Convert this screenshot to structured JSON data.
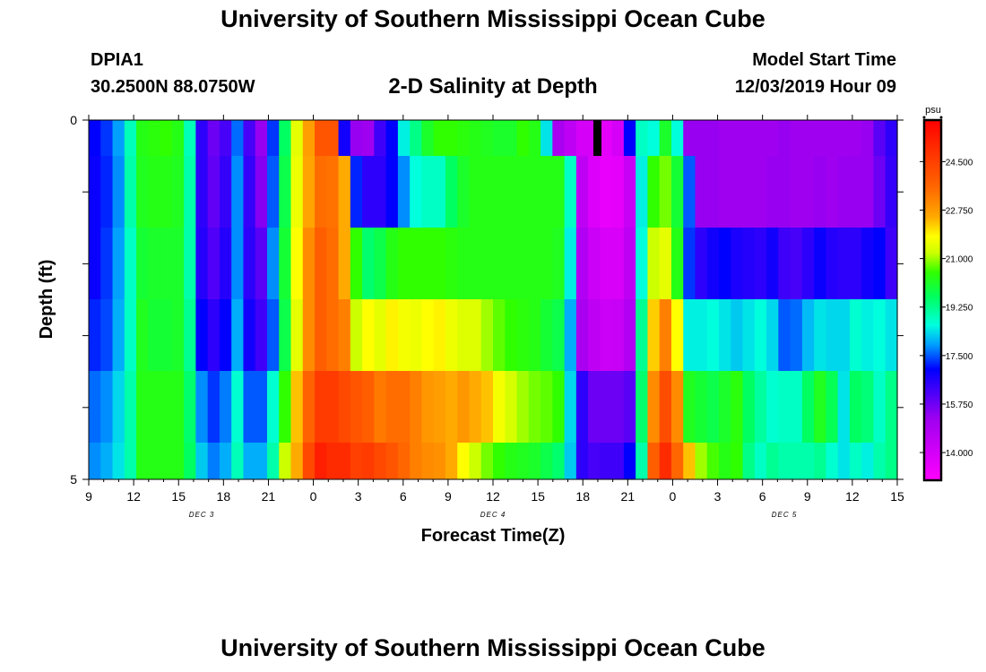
{
  "header": {
    "title": "University of Southern Mississippi Ocean Cube",
    "station_id": "DPIA1",
    "station_coords": "30.2500N 88.0750W",
    "model_start_label": "Model Start Time",
    "model_start_value": "12/03/2019 Hour 09"
  },
  "footer": {
    "title": "University of Southern Mississippi Ocean Cube"
  },
  "chart_data": {
    "type": "heatmap",
    "title": "2-D Salinity at Depth",
    "xlabel": "Forecast Time(Z)",
    "ylabel": "Depth (ft)",
    "x_tick_labels": [
      "9",
      "12",
      "15",
      "18",
      "21",
      "0",
      "3",
      "6",
      "9",
      "12",
      "15",
      "18",
      "21",
      "0",
      "3",
      "6",
      "9",
      "12",
      "15"
    ],
    "date_labels": [
      "DEC 3",
      "DEC 4",
      "DEC 5"
    ],
    "y_tick_labels": [
      "0",
      "5"
    ],
    "ylim": [
      0,
      5
    ],
    "x_start_hour": 9,
    "x_step_hours": 3,
    "colorbar": {
      "unit": "psu",
      "ticks": [
        "24.500",
        "22.750",
        "21.000",
        "19.250",
        "17.500",
        "15.750",
        "14.000"
      ],
      "min": 13.0,
      "max": 26.0,
      "stops": [
        {
          "v": 13.0,
          "c": "#ff00ff"
        },
        {
          "v": 15.2,
          "c": "#a000f0"
        },
        {
          "v": 17.0,
          "c": "#0000ff"
        },
        {
          "v": 17.9,
          "c": "#00a0ff"
        },
        {
          "v": 18.6,
          "c": "#00ffdd"
        },
        {
          "v": 19.6,
          "c": "#00ff60"
        },
        {
          "v": 20.5,
          "c": "#30ff00"
        },
        {
          "v": 21.2,
          "c": "#ccff00"
        },
        {
          "v": 21.8,
          "c": "#ffff00"
        },
        {
          "v": 22.5,
          "c": "#ffaa00"
        },
        {
          "v": 23.6,
          "c": "#ff6600"
        },
        {
          "v": 26.0,
          "c": "#ff0000"
        }
      ]
    },
    "depth_layers_ft": [
      0,
      0.5,
      1.5,
      2.5,
      3.5,
      4.5
    ],
    "salinity_psu": [
      [
        17.0,
        17.3,
        17.9,
        18.9,
        20.3,
        20.4,
        20.5,
        20.3,
        18.9,
        16.5,
        15.8,
        16.2,
        17.6,
        16.2,
        15.3,
        17.3,
        19.6,
        21.5,
        22.7,
        24.0,
        24.0,
        16.8,
        15.3,
        15.2,
        16.3,
        17.0,
        18.5,
        19.3,
        20.1,
        20.5,
        20.5,
        20.4,
        20.3,
        20.2,
        20.1,
        20.1,
        20.5,
        20.3,
        18.4,
        15.0,
        14.5,
        14.0,
        14.0,
        13.6,
        14.0,
        17.0,
        18.8,
        18.6,
        20.1,
        18.6,
        15.3,
        15.3,
        15.3,
        15.2,
        15.2,
        15.2,
        15.2,
        15.2,
        15.3,
        15.2,
        15.2,
        15.2,
        15.2,
        15.2,
        15.2,
        15.3,
        16.0,
        16.5
      ],
      [
        16.9,
        17.2,
        17.8,
        19.0,
        20.2,
        20.3,
        20.3,
        20.2,
        19.0,
        16.5,
        15.9,
        16.4,
        17.8,
        16.4,
        15.5,
        17.5,
        19.8,
        21.6,
        22.6,
        23.5,
        23.4,
        22.5,
        17.2,
        16.5,
        16.5,
        17.0,
        17.8,
        18.6,
        18.8,
        18.8,
        19.6,
        20.1,
        20.3,
        20.3,
        20.3,
        20.3,
        20.3,
        20.3,
        20.3,
        20.3,
        18.8,
        14.5,
        13.8,
        13.5,
        13.6,
        14.3,
        18.5,
        20.5,
        20.8,
        20.0,
        17.5,
        15.3,
        15.3,
        15.2,
        15.2,
        15.2,
        15.2,
        15.3,
        15.3,
        15.2,
        15.2,
        15.3,
        15.2,
        15.3,
        15.3,
        15.3,
        15.8,
        16.4
      ],
      [
        16.9,
        17.3,
        17.9,
        18.8,
        20.0,
        20.1,
        20.1,
        20.1,
        19.0,
        16.6,
        16.1,
        16.6,
        17.8,
        16.5,
        16.0,
        17.8,
        20.0,
        21.8,
        23.0,
        23.8,
        23.5,
        22.5,
        20.5,
        19.5,
        19.8,
        20.3,
        20.5,
        20.5,
        20.5,
        20.5,
        20.4,
        20.3,
        20.3,
        20.3,
        20.3,
        20.3,
        20.3,
        20.3,
        20.3,
        20.2,
        18.5,
        14.8,
        14.2,
        13.9,
        13.9,
        14.5,
        18.6,
        21.2,
        21.5,
        20.3,
        17.3,
        16.5,
        16.8,
        17.0,
        16.7,
        16.6,
        16.5,
        16.8,
        16.3,
        16.2,
        16.5,
        16.9,
        16.6,
        16.5,
        16.5,
        16.8,
        17.0,
        16.3
      ],
      [
        17.2,
        17.4,
        18.0,
        18.8,
        20.2,
        20.0,
        20.0,
        20.1,
        19.2,
        17.0,
        16.5,
        17.0,
        18.0,
        16.8,
        16.3,
        17.5,
        19.8,
        21.5,
        23.0,
        23.8,
        23.5,
        23.2,
        21.2,
        21.8,
        21.5,
        21.9,
        21.7,
        21.6,
        21.8,
        21.9,
        21.6,
        21.4,
        21.4,
        21.0,
        20.7,
        20.5,
        20.4,
        20.3,
        20.0,
        19.8,
        18.0,
        15.0,
        14.5,
        14.2,
        14.3,
        14.8,
        19.2,
        22.2,
        23.2,
        21.8,
        18.5,
        18.5,
        18.6,
        18.4,
        18.2,
        18.4,
        18.6,
        18.3,
        17.5,
        17.6,
        18.1,
        18.4,
        18.3,
        18.3,
        18.7,
        18.5,
        18.6,
        18.4
      ],
      [
        17.6,
        17.8,
        18.3,
        19.0,
        20.3,
        20.3,
        20.3,
        20.3,
        19.5,
        17.8,
        17.3,
        17.7,
        18.7,
        17.5,
        17.5,
        18.7,
        20.5,
        22.3,
        23.7,
        24.6,
        24.6,
        24.3,
        24.0,
        23.8,
        23.3,
        23.5,
        23.5,
        23.2,
        22.8,
        22.7,
        22.5,
        22.8,
        22.5,
        22.3,
        21.7,
        21.3,
        21.0,
        20.8,
        20.7,
        20.5,
        18.3,
        16.5,
        15.8,
        15.8,
        15.8,
        16.0,
        19.5,
        23.0,
        24.2,
        23.0,
        20.2,
        20.0,
        19.8,
        20.1,
        20.4,
        19.6,
        19.1,
        18.7,
        18.8,
        18.8,
        19.6,
        20.2,
        19.7,
        18.4,
        19.6,
        19.4,
        18.8,
        19.3
      ],
      [
        17.8,
        18.0,
        18.4,
        19.0,
        20.3,
        20.3,
        20.3,
        20.3,
        19.6,
        18.2,
        17.7,
        18.0,
        18.9,
        18.0,
        18.0,
        19.0,
        21.2,
        22.5,
        24.3,
        25.3,
        25.0,
        25.0,
        24.5,
        24.6,
        24.3,
        24.0,
        23.6,
        23.2,
        23.0,
        22.9,
        22.5,
        21.8,
        21.2,
        20.8,
        20.5,
        20.3,
        20.2,
        20.1,
        19.8,
        19.5,
        18.2,
        16.5,
        16.2,
        16.3,
        16.3,
        17.0,
        19.0,
        23.8,
        25.0,
        23.6,
        22.3,
        21.0,
        20.6,
        20.3,
        20.5,
        19.3,
        18.8,
        19.2,
        19.0,
        19.0,
        19.0,
        19.2,
        18.7,
        18.4,
        18.8,
        18.5,
        19.0,
        19.3
      ]
    ],
    "masked_cells": [
      {
        "row": 0,
        "col": 41
      }
    ]
  }
}
